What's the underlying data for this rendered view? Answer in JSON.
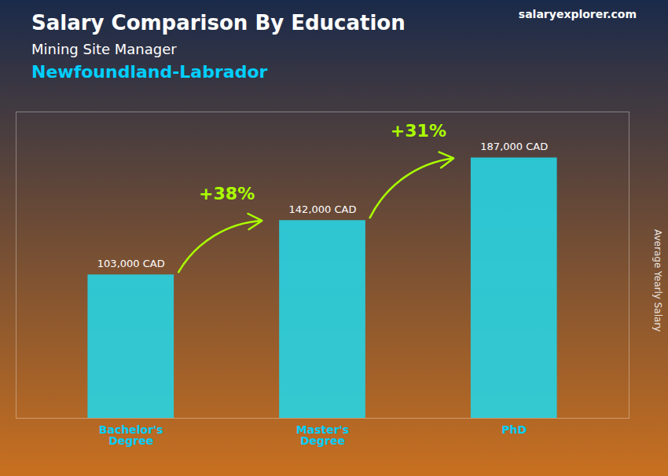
{
  "chart_data": {
    "type": "bar",
    "title": "Salary Comparison By Education",
    "subtitle": "Mining Site Manager",
    "ylabel": "Average Yearly Salary",
    "categories": [
      "Bachelor's\nDegree",
      "Master's\nDegree",
      "PhD"
    ],
    "values": [
      103000,
      142000,
      187000
    ],
    "value_labels": [
      "103,000 CAD",
      "142,000 CAD",
      "187,000 CAD"
    ],
    "data_labels": true,
    "color": "#29d0e0",
    "ylim": [
      0,
      220000
    ],
    "yticks": [],
    "tick_labels": "x",
    "grid": false,
    "annotations": [
      {
        "text": "salaryexplorer.com"
      },
      {
        "text": "Newfoundland-Labrador"
      },
      {
        "text": "+38%",
        "from": "Bachelor's\nDegree",
        "to": "Master's\nDegree"
      },
      {
        "text": "+31%",
        "from": "Master's\nDegree",
        "to": "PhD"
      }
    ]
  }
}
